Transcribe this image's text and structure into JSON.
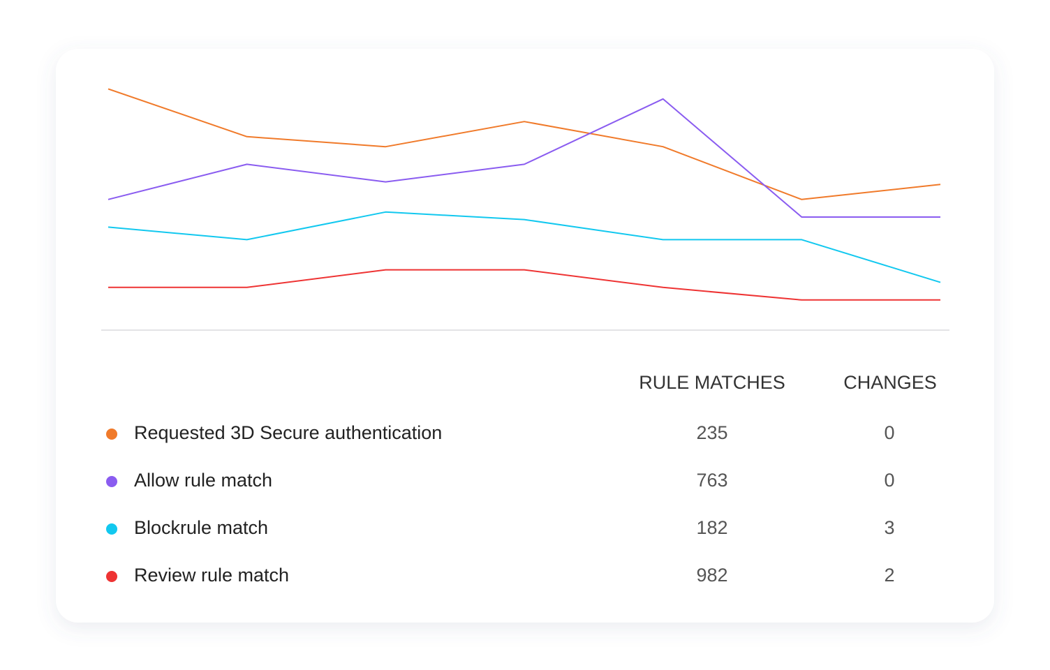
{
  "chart_data": {
    "type": "line",
    "categories": [
      null,
      null,
      null,
      null,
      null,
      null,
      null
    ],
    "ylim": [
      0,
      100
    ],
    "series": [
      {
        "name": "Requested 3D Secure authentication",
        "color": "#f07a2a",
        "values": [
          96,
          77,
          73,
          83,
          73,
          52,
          58
        ]
      },
      {
        "name": "Allow rule match",
        "color": "#8a5cf0",
        "values": [
          52,
          66,
          59,
          66,
          92,
          45,
          45
        ]
      },
      {
        "name": "Blockrule match",
        "color": "#12c8ef",
        "values": [
          41,
          36,
          47,
          44,
          36,
          36,
          19
        ]
      },
      {
        "name": "Review rule match",
        "color": "#ee3333",
        "values": [
          17,
          17,
          24,
          24,
          17,
          12,
          12
        ]
      }
    ]
  },
  "table": {
    "columns": [
      "RULE MATCHES",
      "CHANGES"
    ],
    "rows": [
      [
        235,
        0
      ],
      [
        763,
        0
      ],
      [
        182,
        3
      ],
      [
        982,
        2
      ]
    ]
  }
}
